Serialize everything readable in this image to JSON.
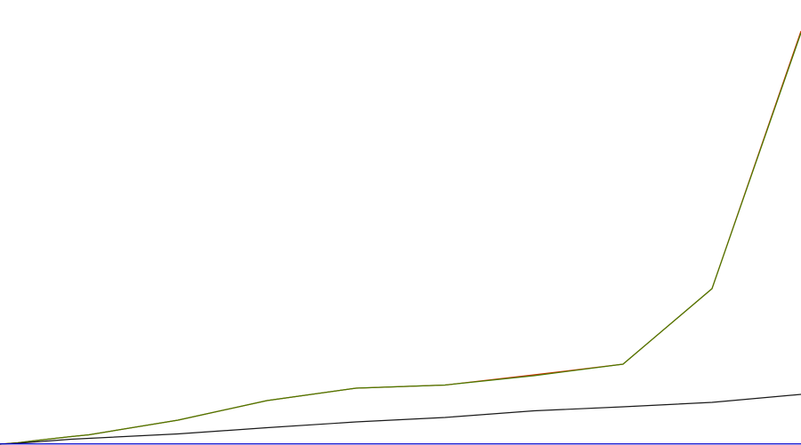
{
  "chart_data": {
    "type": "line",
    "title": "",
    "xlabel": "",
    "ylabel": "",
    "x": [
      0,
      0.2,
      0.4,
      0.8,
      1.0,
      2.0,
      3.0,
      4.0,
      5.0,
      6.0,
      7.0,
      8.0,
      9.0
    ],
    "xlim": [
      0,
      9
    ],
    "ylim": [
      0,
      100
    ],
    "grid": false,
    "legend": "none",
    "series": [
      {
        "color": "#cc3300",
        "values": [
          0.0,
          0.3,
          0.8,
          1.7,
          2.1,
          5.4,
          9.8,
          12.6,
          13.3,
          15.6,
          18.0,
          35.0,
          93.0
        ]
      },
      {
        "color": "#4a7a00",
        "values": [
          0.0,
          0.3,
          0.8,
          1.7,
          2.1,
          5.4,
          9.8,
          12.6,
          13.3,
          15.4,
          18.0,
          35.0,
          92.6
        ]
      },
      {
        "color": "#1a1a1a",
        "values": [
          0.0,
          0.2,
          0.5,
          1.1,
          1.3,
          2.3,
          3.7,
          5.0,
          6.0,
          7.5,
          8.4,
          9.4,
          11.2
        ]
      },
      {
        "color": "#0000cc",
        "values": [
          0.05,
          0.05,
          0.05,
          0.05,
          0.05,
          0.05,
          0.05,
          0.05,
          0.05,
          0.05,
          0.05,
          0.05,
          0.05
        ]
      }
    ]
  }
}
